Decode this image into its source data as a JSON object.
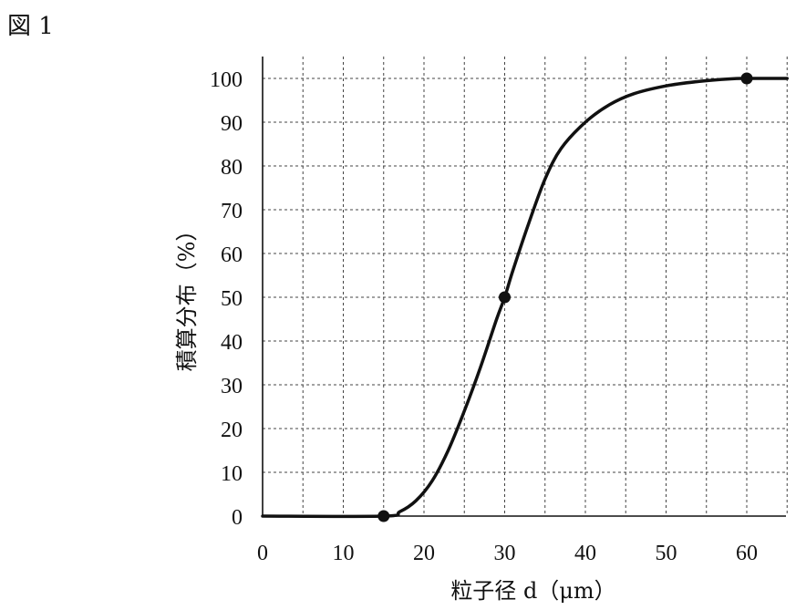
{
  "figure_label": "図 1",
  "chart_data": {
    "type": "line",
    "xlabel": "粒子径 d（μm）",
    "ylabel": "積算分布（%）",
    "xlim": [
      0,
      65
    ],
    "ylim": [
      0,
      100
    ],
    "x_ticks": [
      0,
      10,
      20,
      30,
      40,
      50,
      60
    ],
    "y_ticks": [
      0,
      10,
      20,
      30,
      40,
      50,
      60,
      70,
      80,
      90,
      100
    ],
    "x_grid_step": 5,
    "y_grid_step": 10,
    "grid": true,
    "series": [
      {
        "x": [
          0,
          15,
          17,
          19,
          21,
          23,
          25,
          27,
          29,
          30,
          31,
          33,
          35,
          37,
          40,
          43,
          46,
          50,
          54,
          58,
          60,
          65
        ],
        "y": [
          0,
          0,
          1,
          3.5,
          8,
          15,
          24,
          34,
          45,
          50,
          56,
          67,
          77,
          84,
          90,
          94,
          96.5,
          98.3,
          99.3,
          99.9,
          100,
          100
        ]
      }
    ],
    "markers": [
      {
        "x": 15,
        "y": 0
      },
      {
        "x": 30,
        "y": 50
      },
      {
        "x": 60,
        "y": 100
      }
    ]
  }
}
